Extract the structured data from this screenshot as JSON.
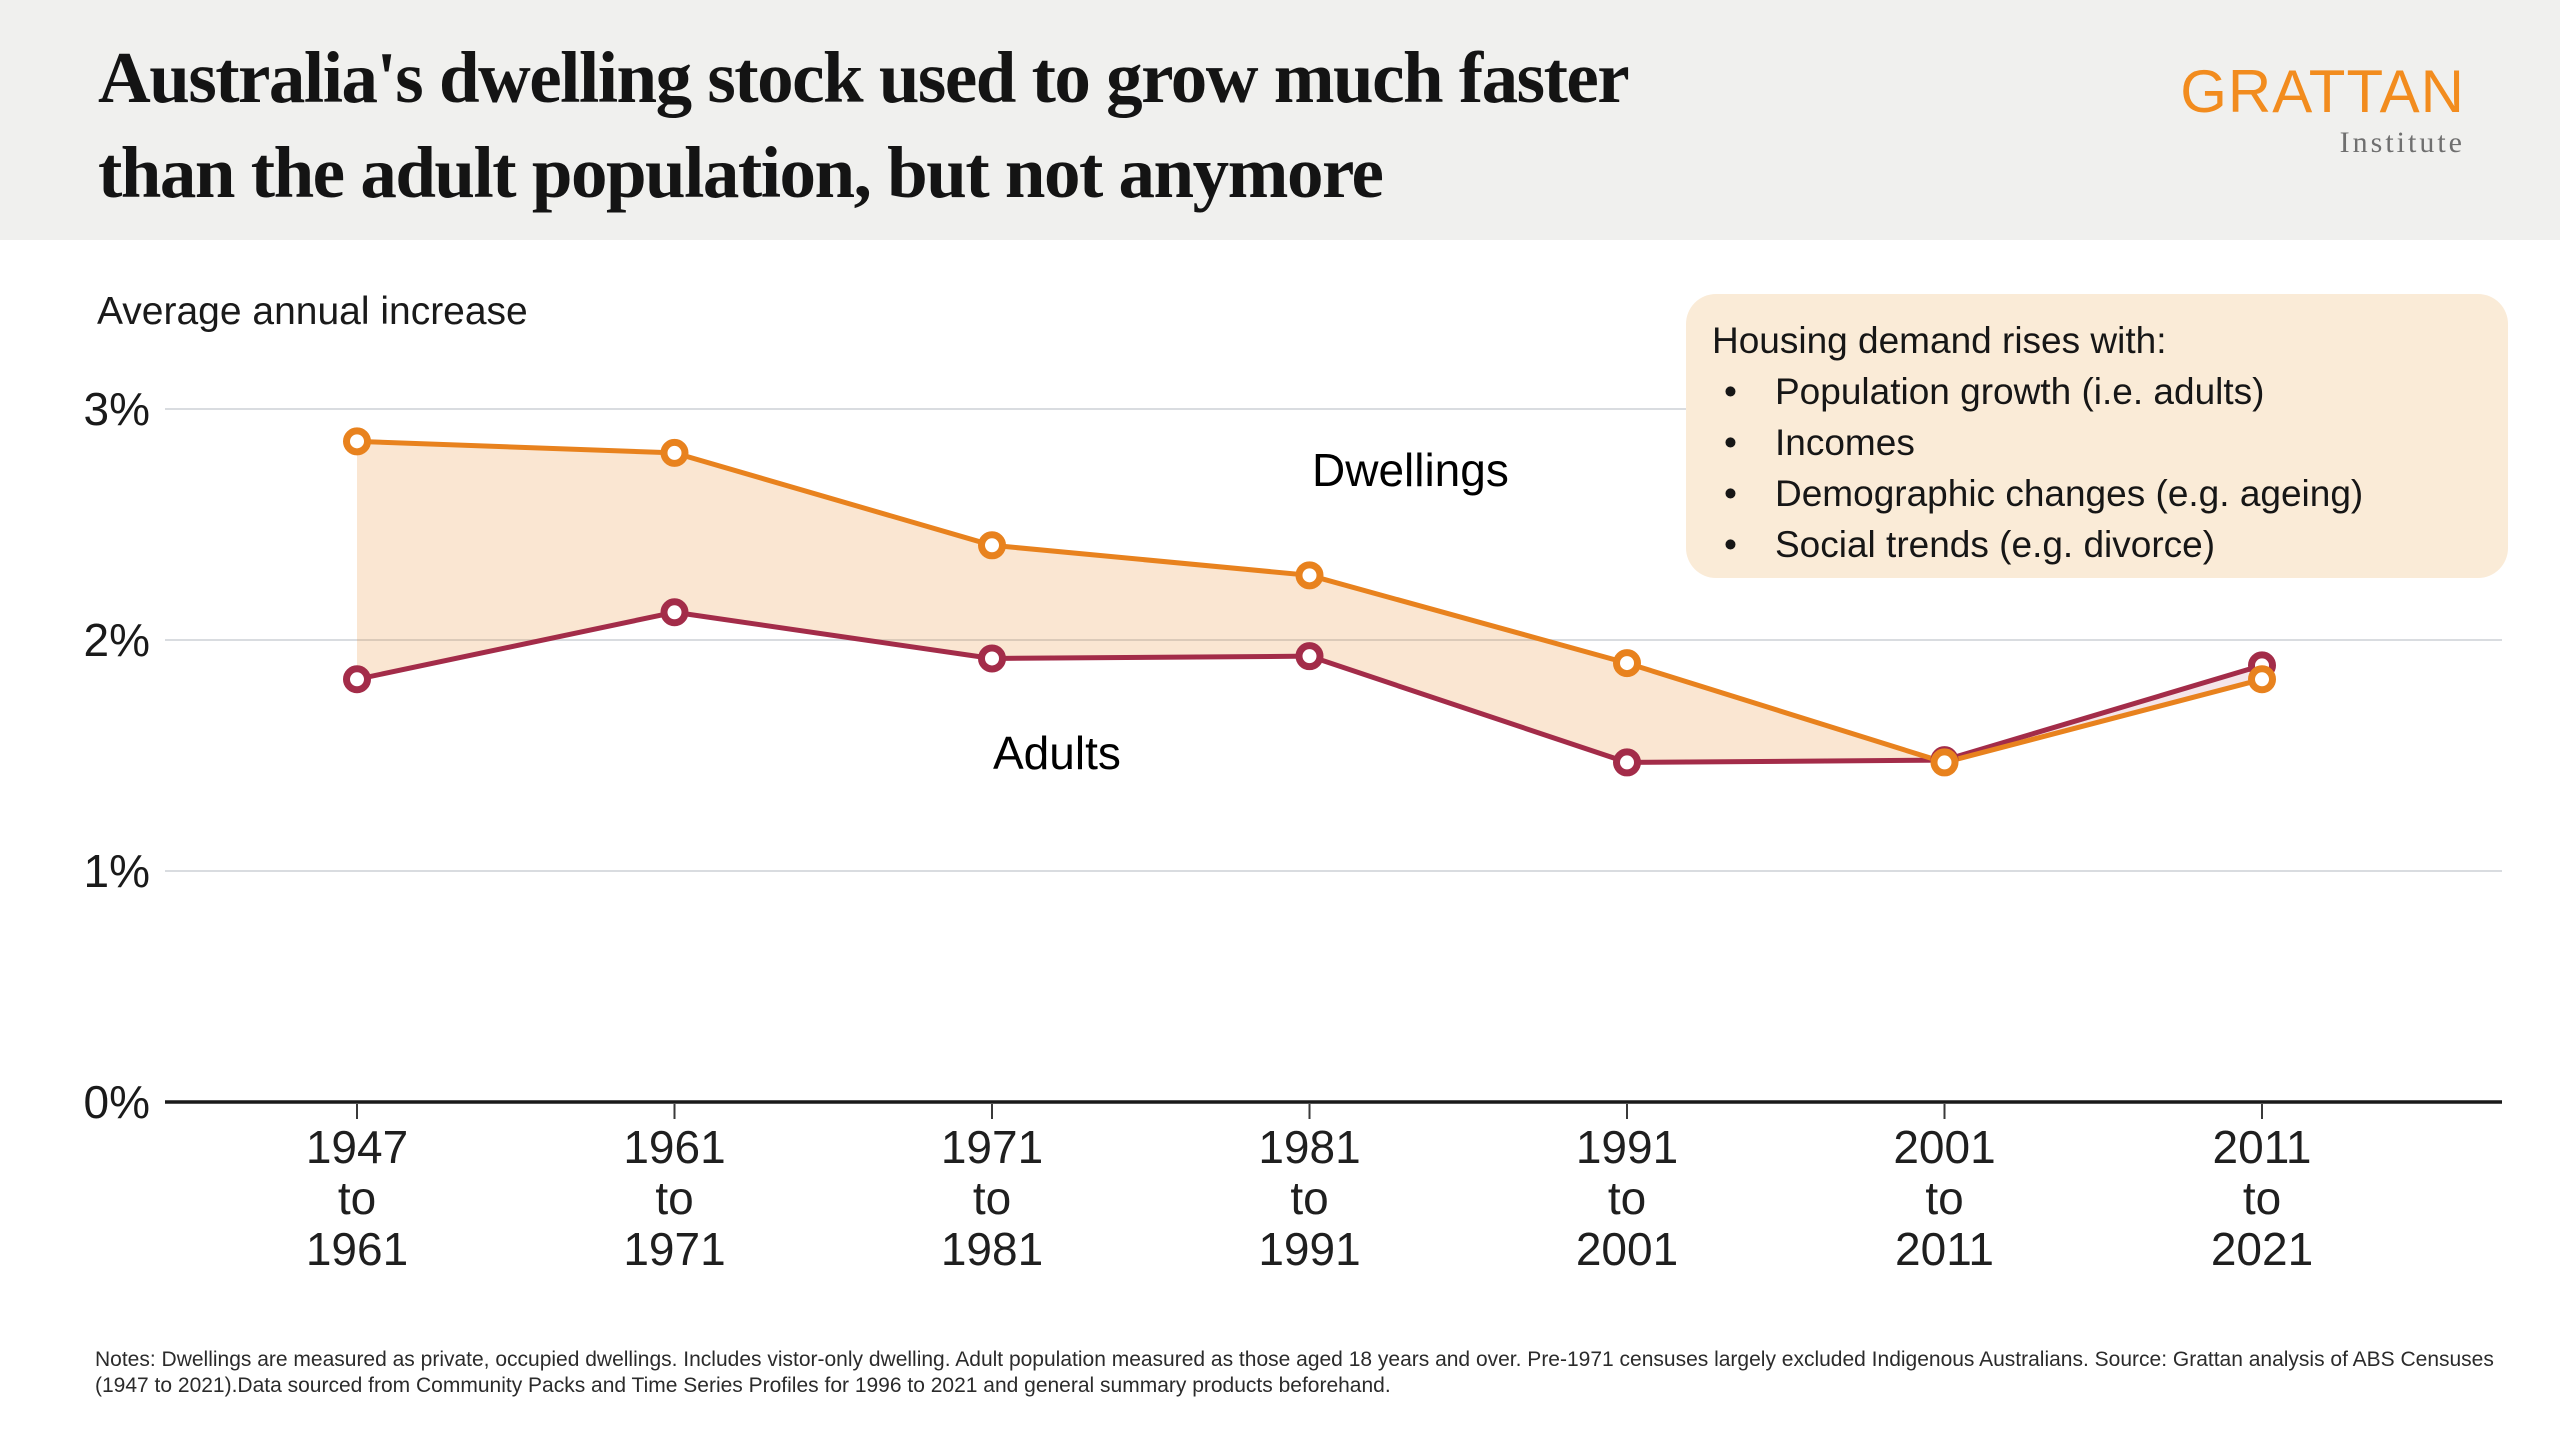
{
  "header": {
    "title_line1": "Australia's dwelling stock used to grow much faster",
    "title_line2": "than the adult population, but not anymore",
    "logo_text": "GRATTAN",
    "logo_subtitle": "Institute"
  },
  "chart_data": {
    "type": "line",
    "title": "Average annual increase",
    "categories": [
      "1947 to 1961",
      "1961 to 1971",
      "1971 to 1981",
      "1981 to 1991",
      "1991 to 2001",
      "2001 to 2011",
      "2011 to 2021"
    ],
    "series": [
      {
        "name": "Dwellings",
        "color": "#E8821E",
        "values": [
          2.86,
          2.81,
          2.41,
          2.28,
          1.9,
          1.47,
          1.83
        ]
      },
      {
        "name": "Adults",
        "color": "#A32C49",
        "values": [
          1.83,
          2.12,
          1.92,
          1.93,
          1.47,
          1.48,
          1.89
        ]
      }
    ],
    "ylim": [
      0,
      3
    ],
    "yticks": [
      {
        "value": 0,
        "label": "0%"
      },
      {
        "value": 1,
        "label": "1%"
      },
      {
        "value": 2,
        "label": "2%"
      },
      {
        "value": 3,
        "label": "3%"
      }
    ],
    "grid": "horizontal gridlines at 1%, 2%, 3%; solid dark baseline at 0%",
    "legend_position": "inline labels next to lines",
    "band_between_series": true
  },
  "annotation_box": {
    "heading": "Housing demand rises with:",
    "bullets": [
      "Population growth (i.e. adults)",
      "Incomes",
      "Demographic changes (e.g. ageing)",
      "Social trends (e.g. divorce)"
    ],
    "background": "#FAEBD7"
  },
  "notes": "Notes: Dwellings are measured as private, occupied dwellings. Includes vistor-only dwelling. Adult population measured as those aged 18 years and over. Pre-1971 censuses largely excluded Indigenous Australians.  Source: Grattan analysis of ABS Censuses (1947 to 2021).Data sourced from Community Packs and Time Series Profiles for 1996 to 2021 and general summary products beforehand.",
  "colors": {
    "dwellings": "#E8821E",
    "adults": "#A32C49",
    "band_peach": "#FAE3CD",
    "band_pink": "#F7DDE4",
    "header_background": "#F0F0EE",
    "logo_orange": "#F28C1E"
  }
}
